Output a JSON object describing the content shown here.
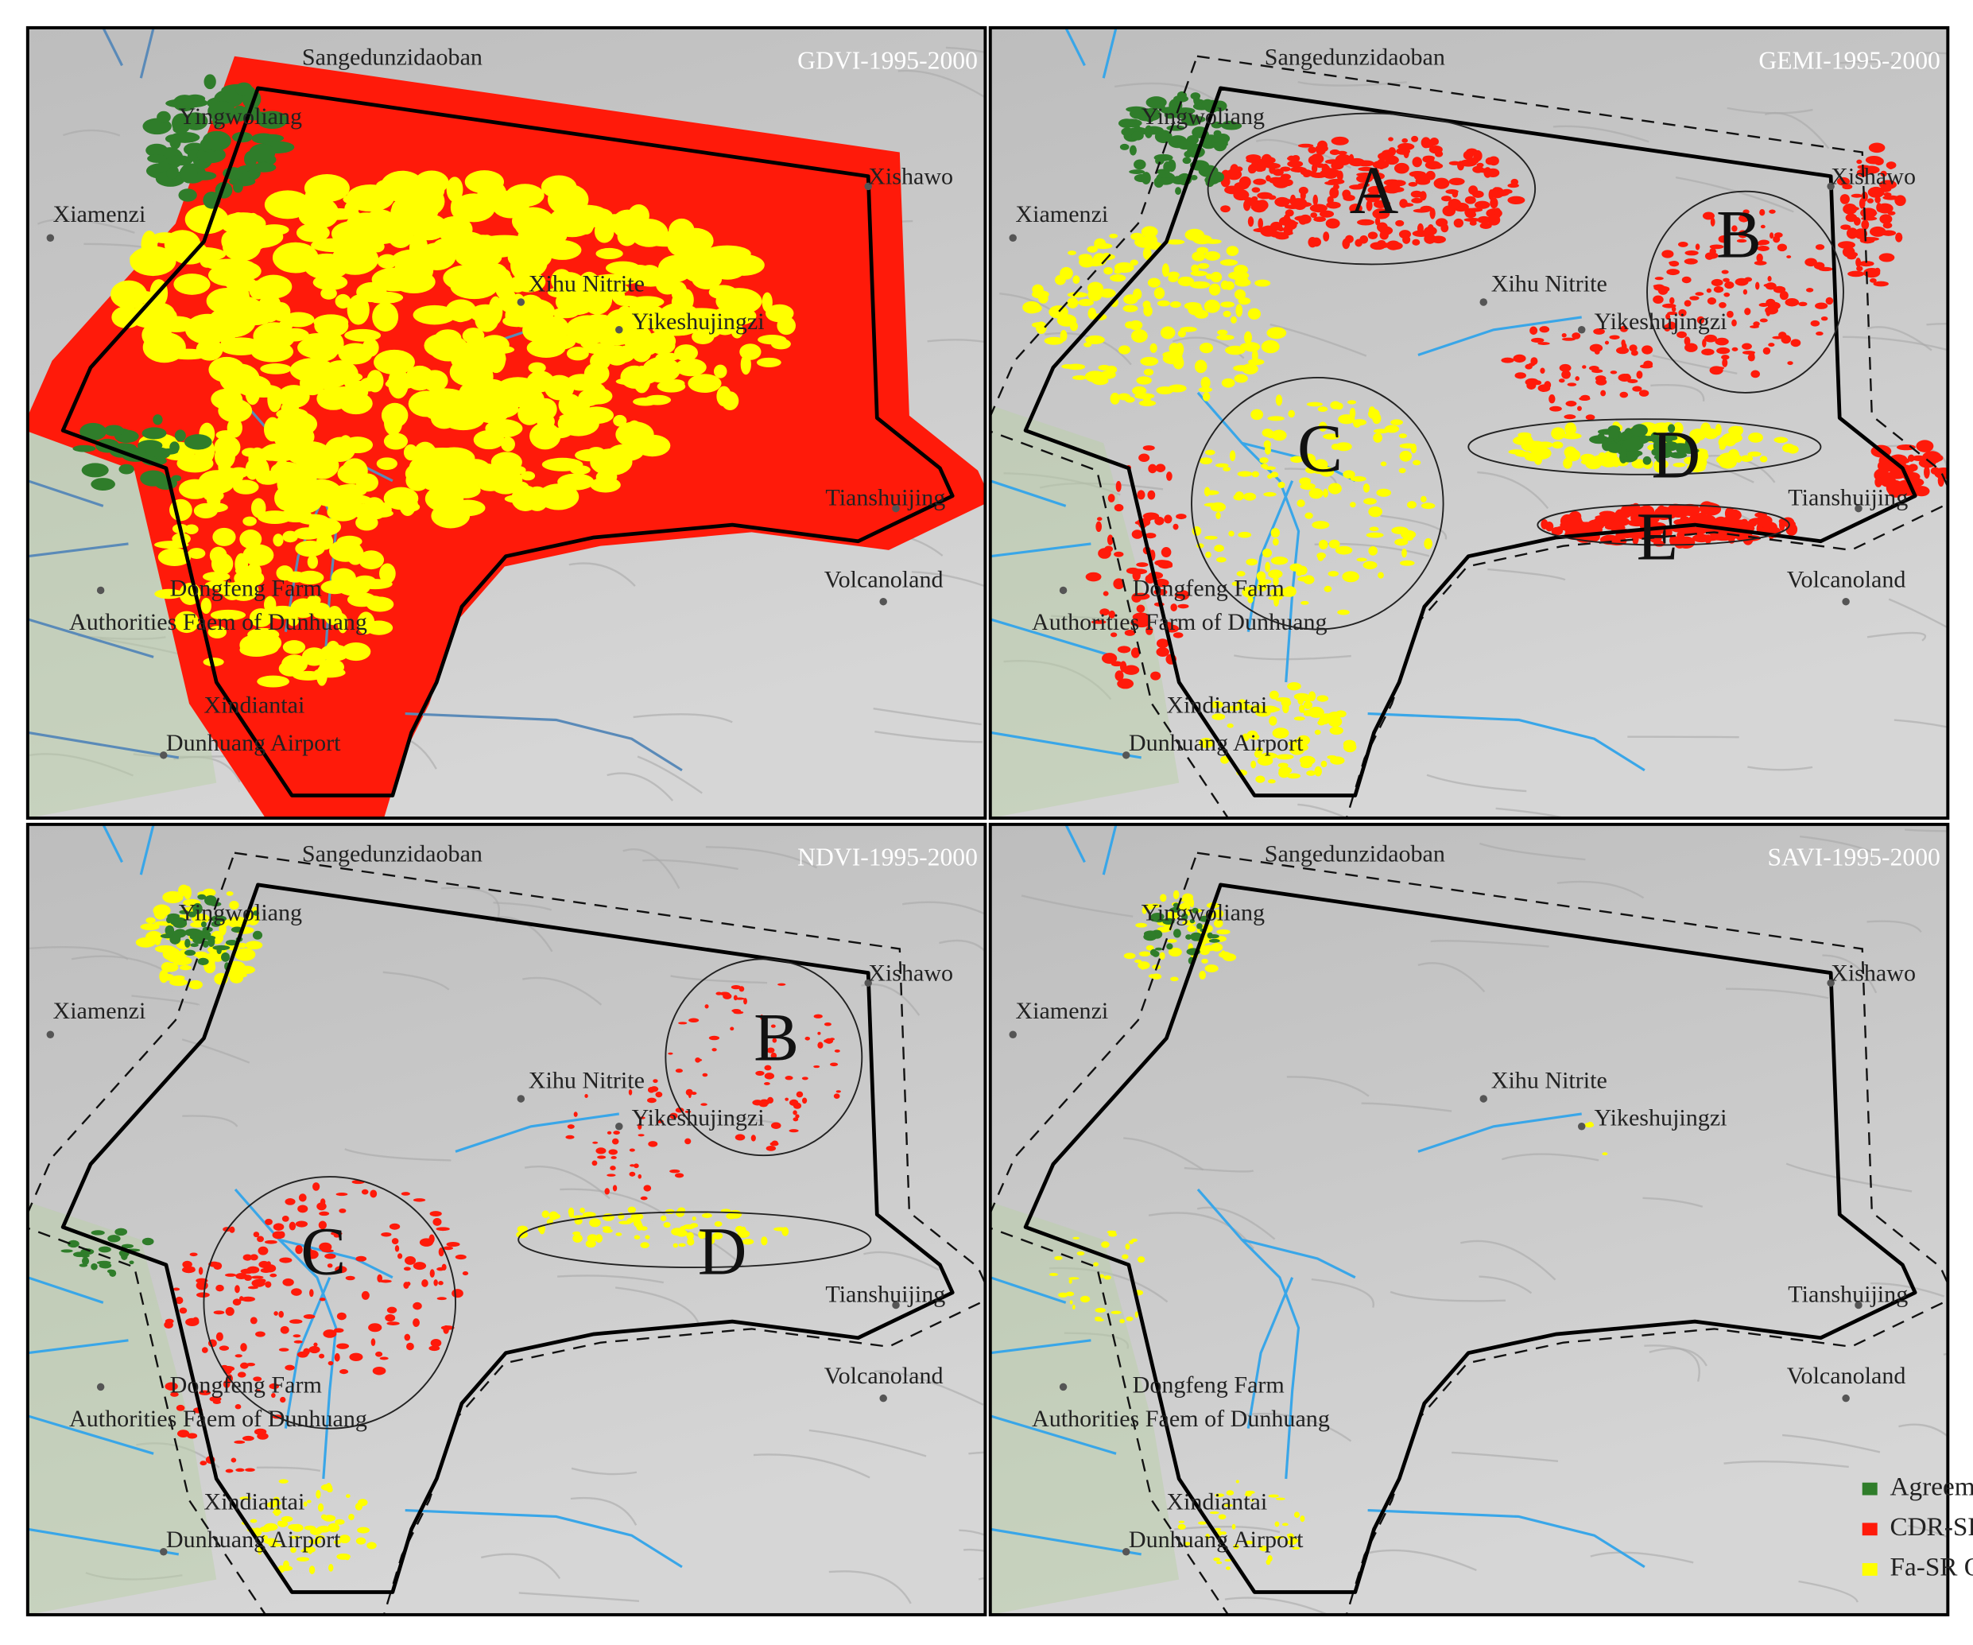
{
  "panels": [
    {
      "title": "GDVI-1995-2000",
      "places": [
        "Sangedunzidaoban",
        "Yingwoliang",
        "Xiamenzi",
        "Xishawo",
        "Xihu Nitrite",
        "Yikeshujingzi",
        "Tianshuijing",
        "Volcanoland",
        "Dongfeng Farm",
        "Authorities Faem of Dunhuang",
        "Xindiantai",
        "Dunhuang Airport"
      ],
      "annotations": []
    },
    {
      "title": "GEMI-1995-2000",
      "places": [
        "Sangedunzidaoban",
        "Yingwoliang",
        "Xiamenzi",
        "Xishawo",
        "Xihu Nitrite",
        "Yikeshujingzi",
        "Tianshuijing",
        "Volcanoland",
        "Dongfeng Farm",
        "Authorities Farm of Dunhuang",
        "Xindiantai",
        "Dunhuang Airport"
      ],
      "annotations": [
        "A",
        "B",
        "C",
        "D",
        "E"
      ]
    },
    {
      "title": "NDVI-1995-2000",
      "places": [
        "Sangedunzidaoban",
        "Yingwoliang",
        "Xiamenzi",
        "Xishawo",
        "Xihu Nitrite",
        "Yikeshujingzi",
        "Tianshuijing",
        "Volcanoland",
        "Dongfeng Farm",
        "Authorities Faem of Dunhuang",
        "Xindiantai",
        "Dunhuang Airport"
      ],
      "annotations": [
        "B",
        "C",
        "D"
      ]
    },
    {
      "title": "SAVI-1995-2000",
      "places": [
        "Sangedunzidaoban",
        "Yingwoliang",
        "Xiamenzi",
        "Xishawo",
        "Xihu Nitrite",
        "Yikeshujingzi",
        "Tianshuijing",
        "Volcanoland",
        "Dongfeng Farm",
        "Authorities Faem of Dunhuang",
        "Xindiantai",
        "Dunhuang Airport"
      ],
      "annotations": []
    }
  ],
  "legend": {
    "items": [
      {
        "label": "Agreement",
        "color": "#2f7d2a"
      },
      {
        "label": "CDR-SR Only",
        "color": "#ff1a0a"
      },
      {
        "label": "Fa-SR Only",
        "color": "#ffff00"
      }
    ]
  }
}
